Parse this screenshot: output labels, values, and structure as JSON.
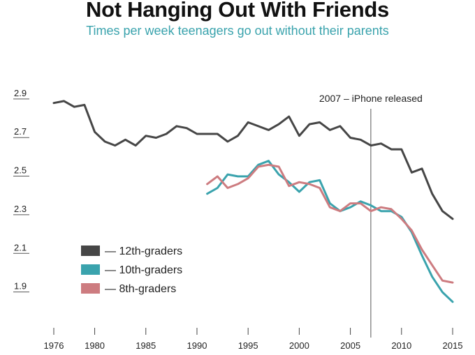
{
  "chart_data": {
    "type": "line",
    "title": "Not Hanging Out With Friends",
    "subtitle": "Times per week teenagers go out without their parents",
    "xlabel": "",
    "ylabel": "",
    "xlim": [
      1976,
      2015
    ],
    "ylim": [
      1.7,
      2.95
    ],
    "x_ticks": [
      1976,
      1980,
      1985,
      1990,
      1995,
      2000,
      2005,
      2010,
      2015
    ],
    "y_ticks": [
      2.9,
      2.7,
      2.5,
      2.3,
      2.1,
      1.9
    ],
    "grid": false,
    "legend_position": "bottom-left",
    "annotation": {
      "x": 2007,
      "label": "2007 – iPhone released"
    },
    "series": [
      {
        "name": "— 12th-graders",
        "color": "#464646",
        "x": [
          1976,
          1977,
          1978,
          1979,
          1980,
          1981,
          1982,
          1983,
          1984,
          1985,
          1986,
          1987,
          1988,
          1989,
          1990,
          1991,
          1992,
          1993,
          1994,
          1995,
          1996,
          1997,
          1998,
          1999,
          2000,
          2001,
          2002,
          2003,
          2004,
          2005,
          2006,
          2007,
          2008,
          2009,
          2010,
          2011,
          2012,
          2013,
          2014,
          2015
        ],
        "values": [
          2.85,
          2.86,
          2.83,
          2.84,
          2.7,
          2.65,
          2.63,
          2.66,
          2.63,
          2.68,
          2.67,
          2.69,
          2.73,
          2.72,
          2.69,
          2.69,
          2.69,
          2.65,
          2.68,
          2.75,
          2.73,
          2.71,
          2.74,
          2.78,
          2.68,
          2.74,
          2.75,
          2.71,
          2.73,
          2.67,
          2.66,
          2.63,
          2.64,
          2.61,
          2.61,
          2.49,
          2.51,
          2.38,
          2.29,
          2.25
        ]
      },
      {
        "name": "— 10th-graders",
        "color": "#3aa3ad",
        "x": [
          1991,
          1992,
          1993,
          1994,
          1995,
          1996,
          1997,
          1998,
          1999,
          2000,
          2001,
          2002,
          2003,
          2004,
          2005,
          2006,
          2007,
          2008,
          2009,
          2010,
          2011,
          2012,
          2013,
          2014,
          2015
        ],
        "values": [
          2.38,
          2.41,
          2.48,
          2.47,
          2.47,
          2.53,
          2.55,
          2.48,
          2.44,
          2.39,
          2.44,
          2.45,
          2.33,
          2.29,
          2.31,
          2.34,
          2.32,
          2.29,
          2.29,
          2.26,
          2.18,
          2.06,
          1.95,
          1.87,
          1.82
        ]
      },
      {
        "name": "— 8th-graders",
        "color": "#cd7c80",
        "x": [
          1991,
          1992,
          1993,
          1994,
          1995,
          1996,
          1997,
          1998,
          1999,
          2000,
          2001,
          2002,
          2003,
          2004,
          2005,
          2006,
          2007,
          2008,
          2009,
          2010,
          2011,
          2012,
          2013,
          2014,
          2015
        ],
        "values": [
          2.43,
          2.47,
          2.41,
          2.43,
          2.46,
          2.52,
          2.53,
          2.52,
          2.42,
          2.44,
          2.43,
          2.41,
          2.31,
          2.29,
          2.33,
          2.33,
          2.29,
          2.31,
          2.3,
          2.25,
          2.19,
          2.09,
          2.01,
          1.93,
          1.92
        ]
      }
    ]
  }
}
